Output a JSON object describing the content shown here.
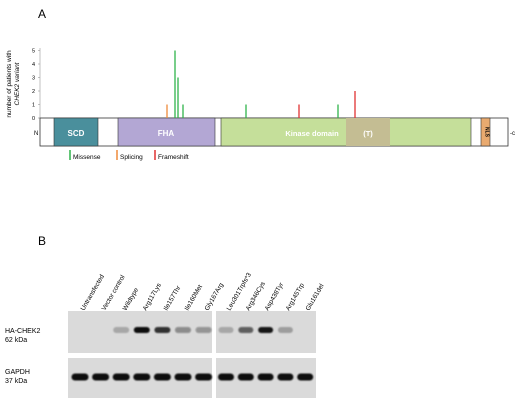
{
  "panelA": {
    "label": "A",
    "ylabel_line1": "number of patients with",
    "ylabel_line2": "CHEK2 variant",
    "yticks": [
      "0",
      "1",
      "2",
      "3",
      "4",
      "5"
    ],
    "n_terminus": "N",
    "c_terminus": "-c",
    "domains": [
      {
        "id": "scd",
        "label": "SCD",
        "color": "#4a8f9c"
      },
      {
        "id": "fha",
        "label": "FHA",
        "color": "#b3a7d4"
      },
      {
        "id": "kinase",
        "label": "Kinase domain",
        "color": "#c5df9a"
      },
      {
        "id": "t",
        "label": "(T)",
        "color": "#c4bd93"
      },
      {
        "id": "nls",
        "label": "NLS",
        "color": "#e9aa6f"
      }
    ],
    "variants": [
      {
        "type": "Splicing",
        "value": 1
      },
      {
        "type": "Missense",
        "value": 5
      },
      {
        "type": "Missense",
        "value": 3
      },
      {
        "type": "Missense",
        "value": 1
      },
      {
        "type": "Missense",
        "value": 1
      },
      {
        "type": "Frameshift",
        "value": 1
      },
      {
        "type": "Missense",
        "value": 1
      },
      {
        "type": "Frameshift",
        "value": 2
      }
    ],
    "legend": [
      {
        "label": "Missense",
        "color": "#2fb34a"
      },
      {
        "label": "Splicing",
        "color": "#ef8a3a"
      },
      {
        "label": "Frameshift",
        "color": "#e03232"
      }
    ]
  },
  "panelB": {
    "label": "B",
    "lanes_left": [
      "Untransfected",
      "Vector control",
      "Wildtype",
      "Arg117Lys",
      "Ile157Thr",
      "Ile160Met",
      "Gly167Arg"
    ],
    "lanes_right": [
      "Leu301Trpfs*3",
      "Arg346Cys",
      "Asp438Tyr",
      "Arg145Trp",
      "Glu161del"
    ],
    "blot1_label_line1": "HA-CHEK2",
    "blot1_label_line2": "62 kDa",
    "blot2_label_line1": "GAPDH",
    "blot2_label_line2": "37 kDa",
    "ha_intensity_left": [
      0,
      0,
      0.1,
      1.0,
      0.8,
      0.3,
      0.25
    ],
    "ha_intensity_right": [
      0.1,
      0.55,
      0.95,
      0.15,
      0
    ],
    "gapdh_intensity_left": [
      1,
      1,
      1,
      1,
      1,
      1,
      1
    ],
    "gapdh_intensity_right": [
      1,
      1,
      1,
      1,
      1
    ]
  }
}
